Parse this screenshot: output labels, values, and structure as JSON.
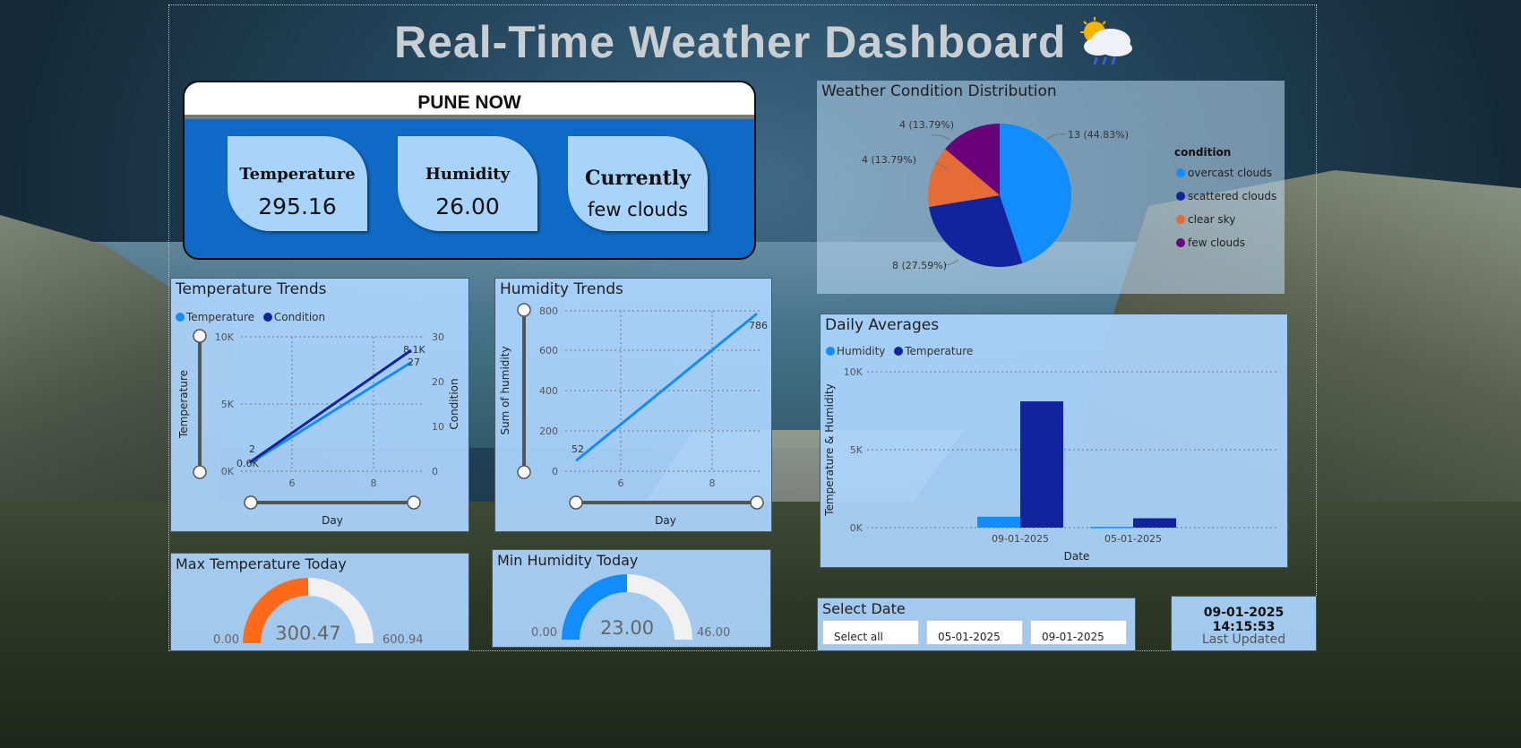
{
  "header": {
    "title": "Real-Time Weather Dashboard",
    "icon": "cloud-sun-rain-icon"
  },
  "pune_now": {
    "title": "PUNE NOW",
    "temperature": {
      "label": "Temperature",
      "value": "295.16"
    },
    "humidity": {
      "label": "Humidity",
      "value": "26.00"
    },
    "currently": {
      "label": "Currently",
      "value": "few clouds"
    }
  },
  "pie": {
    "title": "Weather Condition Distribution",
    "legend_title": "condition",
    "slice_labels": [
      "13 (44.83%)",
      "8 (27.59%)",
      "4 (13.79%)",
      "4 (13.79%)"
    ],
    "legend": [
      "overcast clouds",
      "scattered clouds",
      "clear sky",
      "few clouds"
    ],
    "colors": [
      "#118dff",
      "#12239e",
      "#e66c37",
      "#6b007b"
    ]
  },
  "temperature_trends": {
    "title": "Temperature Trends",
    "legend": [
      "Temperature",
      "Condition"
    ],
    "y_label": "Temperature",
    "y2_label": "Condition",
    "x_label": "Day",
    "y_ticks": [
      "10K",
      "5K",
      "0K"
    ],
    "y2_ticks": [
      "30",
      "20",
      "10",
      "0"
    ],
    "x_ticks": [
      "6",
      "8"
    ],
    "labels": {
      "temp_start": "0.6K",
      "temp_end": "8.1K",
      "cond_start": "2",
      "cond_end": "27"
    }
  },
  "humidity_trends": {
    "title": "Humidity Trends",
    "y_label": "Sum of humidity",
    "x_label": "Day",
    "y_ticks": [
      "800",
      "600",
      "400",
      "200",
      "0"
    ],
    "x_ticks": [
      "6",
      "8"
    ],
    "labels": {
      "start": "52",
      "end": "786"
    }
  },
  "daily_averages": {
    "title": "Daily Averages",
    "legend": [
      "Humidity",
      "Temperature"
    ],
    "y_label": "Temperature & Humidity",
    "x_label": "Date",
    "y_ticks": [
      "10K",
      "5K",
      "0K"
    ],
    "x_ticks": [
      "09-01-2025",
      "05-01-2025"
    ]
  },
  "max_temp": {
    "title": "Max Temperature Today",
    "min": "0.00",
    "value": "300.47",
    "max": "600.94",
    "fraction": 0.5
  },
  "min_humidity": {
    "title": "Min Humidity Today",
    "min": "0.00",
    "value": "23.00",
    "max": "46.00",
    "fraction": 0.5
  },
  "select_date": {
    "title": "Select Date",
    "options": [
      "Select all",
      "05-01-2025",
      "09-01-2025"
    ]
  },
  "last_updated": {
    "timestamp": "09-01-2025 14:15:53",
    "label": "Last Updated"
  },
  "chart_data": [
    {
      "type": "pie",
      "title": "Weather Condition Distribution",
      "categories": [
        "overcast clouds",
        "scattered clouds",
        "clear sky",
        "few clouds"
      ],
      "values": [
        13,
        8,
        4,
        4
      ]
    },
    {
      "type": "line",
      "title": "Temperature Trends",
      "xlabel": "Day",
      "x": [
        5,
        9
      ],
      "series": [
        {
          "name": "Temperature",
          "values": [
            600,
            8100
          ],
          "axis": "left",
          "ylim": [
            0,
            10000
          ]
        },
        {
          "name": "Condition",
          "values": [
            2,
            27
          ],
          "axis": "right",
          "ylim": [
            0,
            30
          ]
        }
      ]
    },
    {
      "type": "line",
      "title": "Humidity Trends",
      "xlabel": "Day",
      "ylabel": "Sum of humidity",
      "x": [
        5,
        9
      ],
      "series": [
        {
          "values": [
            52,
            786
          ]
        }
      ],
      "ylim": [
        0,
        800
      ]
    },
    {
      "type": "bar",
      "title": "Daily Averages",
      "xlabel": "Date",
      "ylabel": "Temperature & Humidity",
      "categories": [
        "09-01-2025",
        "05-01-2025"
      ],
      "series": [
        {
          "name": "Humidity",
          "values": [
            700,
            50
          ]
        },
        {
          "name": "Temperature",
          "values": [
            8100,
            600
          ]
        }
      ],
      "ylim": [
        0,
        10000
      ]
    }
  ]
}
